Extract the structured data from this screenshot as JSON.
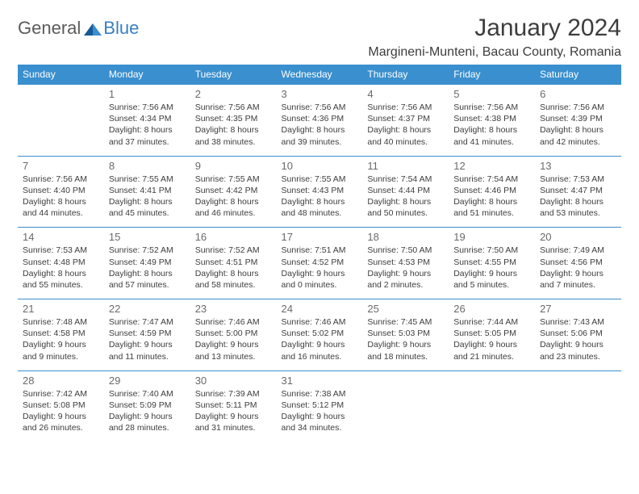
{
  "logo": {
    "text1": "General",
    "text2": "Blue"
  },
  "title": "January 2024",
  "location": "Margineni-Munteni, Bacau County, Romania",
  "colors": {
    "header_bg": "#3a8fce",
    "header_text": "#ffffff",
    "border": "#3a8fce",
    "body_text": "#3d3d3d",
    "daynum": "#6a6a6a",
    "logo_gray": "#5b5b5b",
    "logo_blue": "#3a7fbf"
  },
  "weekdays": [
    "Sunday",
    "Monday",
    "Tuesday",
    "Wednesday",
    "Thursday",
    "Friday",
    "Saturday"
  ],
  "weeks": [
    [
      null,
      {
        "n": "1",
        "sr": "Sunrise: 7:56 AM",
        "ss": "Sunset: 4:34 PM",
        "d1": "Daylight: 8 hours",
        "d2": "and 37 minutes."
      },
      {
        "n": "2",
        "sr": "Sunrise: 7:56 AM",
        "ss": "Sunset: 4:35 PM",
        "d1": "Daylight: 8 hours",
        "d2": "and 38 minutes."
      },
      {
        "n": "3",
        "sr": "Sunrise: 7:56 AM",
        "ss": "Sunset: 4:36 PM",
        "d1": "Daylight: 8 hours",
        "d2": "and 39 minutes."
      },
      {
        "n": "4",
        "sr": "Sunrise: 7:56 AM",
        "ss": "Sunset: 4:37 PM",
        "d1": "Daylight: 8 hours",
        "d2": "and 40 minutes."
      },
      {
        "n": "5",
        "sr": "Sunrise: 7:56 AM",
        "ss": "Sunset: 4:38 PM",
        "d1": "Daylight: 8 hours",
        "d2": "and 41 minutes."
      },
      {
        "n": "6",
        "sr": "Sunrise: 7:56 AM",
        "ss": "Sunset: 4:39 PM",
        "d1": "Daylight: 8 hours",
        "d2": "and 42 minutes."
      }
    ],
    [
      {
        "n": "7",
        "sr": "Sunrise: 7:56 AM",
        "ss": "Sunset: 4:40 PM",
        "d1": "Daylight: 8 hours",
        "d2": "and 44 minutes."
      },
      {
        "n": "8",
        "sr": "Sunrise: 7:55 AM",
        "ss": "Sunset: 4:41 PM",
        "d1": "Daylight: 8 hours",
        "d2": "and 45 minutes."
      },
      {
        "n": "9",
        "sr": "Sunrise: 7:55 AM",
        "ss": "Sunset: 4:42 PM",
        "d1": "Daylight: 8 hours",
        "d2": "and 46 minutes."
      },
      {
        "n": "10",
        "sr": "Sunrise: 7:55 AM",
        "ss": "Sunset: 4:43 PM",
        "d1": "Daylight: 8 hours",
        "d2": "and 48 minutes."
      },
      {
        "n": "11",
        "sr": "Sunrise: 7:54 AM",
        "ss": "Sunset: 4:44 PM",
        "d1": "Daylight: 8 hours",
        "d2": "and 50 minutes."
      },
      {
        "n": "12",
        "sr": "Sunrise: 7:54 AM",
        "ss": "Sunset: 4:46 PM",
        "d1": "Daylight: 8 hours",
        "d2": "and 51 minutes."
      },
      {
        "n": "13",
        "sr": "Sunrise: 7:53 AM",
        "ss": "Sunset: 4:47 PM",
        "d1": "Daylight: 8 hours",
        "d2": "and 53 minutes."
      }
    ],
    [
      {
        "n": "14",
        "sr": "Sunrise: 7:53 AM",
        "ss": "Sunset: 4:48 PM",
        "d1": "Daylight: 8 hours",
        "d2": "and 55 minutes."
      },
      {
        "n": "15",
        "sr": "Sunrise: 7:52 AM",
        "ss": "Sunset: 4:49 PM",
        "d1": "Daylight: 8 hours",
        "d2": "and 57 minutes."
      },
      {
        "n": "16",
        "sr": "Sunrise: 7:52 AM",
        "ss": "Sunset: 4:51 PM",
        "d1": "Daylight: 8 hours",
        "d2": "and 58 minutes."
      },
      {
        "n": "17",
        "sr": "Sunrise: 7:51 AM",
        "ss": "Sunset: 4:52 PM",
        "d1": "Daylight: 9 hours",
        "d2": "and 0 minutes."
      },
      {
        "n": "18",
        "sr": "Sunrise: 7:50 AM",
        "ss": "Sunset: 4:53 PM",
        "d1": "Daylight: 9 hours",
        "d2": "and 2 minutes."
      },
      {
        "n": "19",
        "sr": "Sunrise: 7:50 AM",
        "ss": "Sunset: 4:55 PM",
        "d1": "Daylight: 9 hours",
        "d2": "and 5 minutes."
      },
      {
        "n": "20",
        "sr": "Sunrise: 7:49 AM",
        "ss": "Sunset: 4:56 PM",
        "d1": "Daylight: 9 hours",
        "d2": "and 7 minutes."
      }
    ],
    [
      {
        "n": "21",
        "sr": "Sunrise: 7:48 AM",
        "ss": "Sunset: 4:58 PM",
        "d1": "Daylight: 9 hours",
        "d2": "and 9 minutes."
      },
      {
        "n": "22",
        "sr": "Sunrise: 7:47 AM",
        "ss": "Sunset: 4:59 PM",
        "d1": "Daylight: 9 hours",
        "d2": "and 11 minutes."
      },
      {
        "n": "23",
        "sr": "Sunrise: 7:46 AM",
        "ss": "Sunset: 5:00 PM",
        "d1": "Daylight: 9 hours",
        "d2": "and 13 minutes."
      },
      {
        "n": "24",
        "sr": "Sunrise: 7:46 AM",
        "ss": "Sunset: 5:02 PM",
        "d1": "Daylight: 9 hours",
        "d2": "and 16 minutes."
      },
      {
        "n": "25",
        "sr": "Sunrise: 7:45 AM",
        "ss": "Sunset: 5:03 PM",
        "d1": "Daylight: 9 hours",
        "d2": "and 18 minutes."
      },
      {
        "n": "26",
        "sr": "Sunrise: 7:44 AM",
        "ss": "Sunset: 5:05 PM",
        "d1": "Daylight: 9 hours",
        "d2": "and 21 minutes."
      },
      {
        "n": "27",
        "sr": "Sunrise: 7:43 AM",
        "ss": "Sunset: 5:06 PM",
        "d1": "Daylight: 9 hours",
        "d2": "and 23 minutes."
      }
    ],
    [
      {
        "n": "28",
        "sr": "Sunrise: 7:42 AM",
        "ss": "Sunset: 5:08 PM",
        "d1": "Daylight: 9 hours",
        "d2": "and 26 minutes."
      },
      {
        "n": "29",
        "sr": "Sunrise: 7:40 AM",
        "ss": "Sunset: 5:09 PM",
        "d1": "Daylight: 9 hours",
        "d2": "and 28 minutes."
      },
      {
        "n": "30",
        "sr": "Sunrise: 7:39 AM",
        "ss": "Sunset: 5:11 PM",
        "d1": "Daylight: 9 hours",
        "d2": "and 31 minutes."
      },
      {
        "n": "31",
        "sr": "Sunrise: 7:38 AM",
        "ss": "Sunset: 5:12 PM",
        "d1": "Daylight: 9 hours",
        "d2": "and 34 minutes."
      },
      null,
      null,
      null
    ]
  ]
}
